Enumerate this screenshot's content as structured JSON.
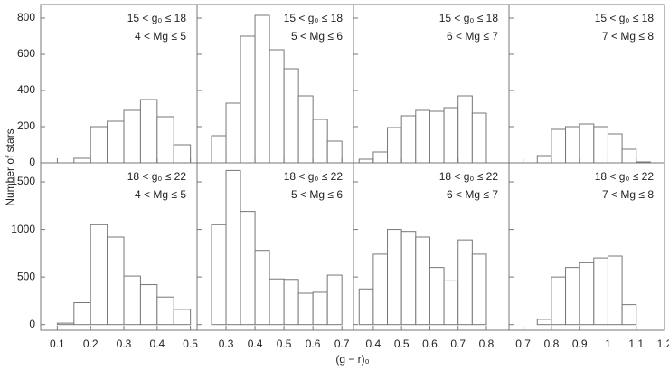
{
  "ylabel": "Number of stars",
  "xlabel": "(g − r)₀",
  "chart_data": [
    {
      "type": "histogram",
      "annotations": [
        "15 < g₀ ≤ 18",
        "4 < Mg ≤ 5"
      ],
      "bins": [
        0.15,
        0.2,
        0.25,
        0.3,
        0.35,
        0.4,
        0.45,
        0.5
      ],
      "counts": [
        25,
        200,
        230,
        290,
        350,
        255,
        100
      ],
      "xlim": [
        0.05,
        0.52
      ],
      "ylim": [
        0,
        875
      ],
      "yticks": [
        0,
        200,
        400,
        600,
        800
      ]
    },
    {
      "type": "histogram",
      "annotations": [
        "15 < g₀ ≤ 18",
        "5 < Mg ≤ 6"
      ],
      "bins": [
        0.25,
        0.3,
        0.35,
        0.4,
        0.45,
        0.5,
        0.55,
        0.6,
        0.65,
        0.7
      ],
      "counts": [
        150,
        330,
        700,
        815,
        625,
        520,
        370,
        240,
        120
      ],
      "xlim": [
        0.2,
        0.74
      ],
      "ylim": [
        0,
        875
      ]
    },
    {
      "type": "histogram",
      "annotations": [
        "15 < g₀ ≤ 18",
        "6 < Mg ≤ 7"
      ],
      "bins": [
        0.35,
        0.4,
        0.45,
        0.5,
        0.55,
        0.6,
        0.65,
        0.7,
        0.75,
        0.8
      ],
      "counts": [
        20,
        60,
        195,
        260,
        290,
        285,
        305,
        370,
        275
      ],
      "xlim": [
        0.33,
        0.88
      ],
      "ylim": [
        0,
        875
      ]
    },
    {
      "type": "histogram",
      "annotations": [
        "15 < g₀ ≤ 18",
        "7 < Mg ≤ 8"
      ],
      "bins": [
        0.75,
        0.8,
        0.85,
        0.9,
        0.95,
        1.0,
        1.05,
        1.1,
        1.15
      ],
      "counts": [
        40,
        185,
        200,
        215,
        200,
        160,
        75,
        5
      ],
      "xlim": [
        0.65,
        1.2
      ],
      "ylim": [
        0,
        875
      ]
    },
    {
      "type": "histogram",
      "annotations": [
        "18 < g₀ ≤ 22",
        "4 < Mg ≤ 5"
      ],
      "bins": [
        0.1,
        0.15,
        0.2,
        0.25,
        0.3,
        0.35,
        0.4,
        0.45,
        0.5
      ],
      "counts": [
        15,
        230,
        1050,
        920,
        510,
        420,
        290,
        160
      ],
      "xlim": [
        0.05,
        0.52
      ],
      "ylim": [
        -60,
        1700
      ],
      "yticks": [
        0,
        500,
        1000,
        1500
      ],
      "xticks": [
        0.1,
        0.2,
        0.3,
        0.4,
        0.5
      ]
    },
    {
      "type": "histogram",
      "annotations": [
        "18 < g₀ ≤ 22",
        "5 < Mg ≤ 6"
      ],
      "bins": [
        0.25,
        0.3,
        0.35,
        0.4,
        0.45,
        0.5,
        0.55,
        0.6,
        0.65,
        0.7
      ],
      "counts": [
        1050,
        1620,
        1190,
        780,
        480,
        475,
        330,
        340,
        520
      ],
      "xlim": [
        0.2,
        0.74
      ],
      "ylim": [
        -60,
        1700
      ],
      "xticks": [
        0.3,
        0.4,
        0.5,
        0.6,
        0.7
      ]
    },
    {
      "type": "histogram",
      "annotations": [
        "18 < g₀ ≤ 22",
        "6 < Mg ≤ 7"
      ],
      "bins": [
        0.35,
        0.4,
        0.45,
        0.5,
        0.55,
        0.6,
        0.65,
        0.7,
        0.75,
        0.8
      ],
      "counts": [
        375,
        740,
        1000,
        980,
        920,
        600,
        460,
        890,
        740
      ],
      "xlim": [
        0.33,
        0.88
      ],
      "ylim": [
        -60,
        1700
      ],
      "xticks": [
        0.4,
        0.5,
        0.6,
        0.7,
        0.8
      ]
    },
    {
      "type": "histogram",
      "annotations": [
        "18 < g₀ ≤ 22",
        "7 < Mg ≤ 8"
      ],
      "bins": [
        0.75,
        0.8,
        0.85,
        0.9,
        0.95,
        1.0,
        1.05,
        1.1
      ],
      "counts": [
        55,
        500,
        600,
        650,
        700,
        720,
        210
      ],
      "xlim": [
        0.65,
        1.2
      ],
      "ylim": [
        -60,
        1700
      ],
      "xticks": [
        0.7,
        0.8,
        0.9,
        1,
        1.1,
        1.2
      ]
    }
  ]
}
